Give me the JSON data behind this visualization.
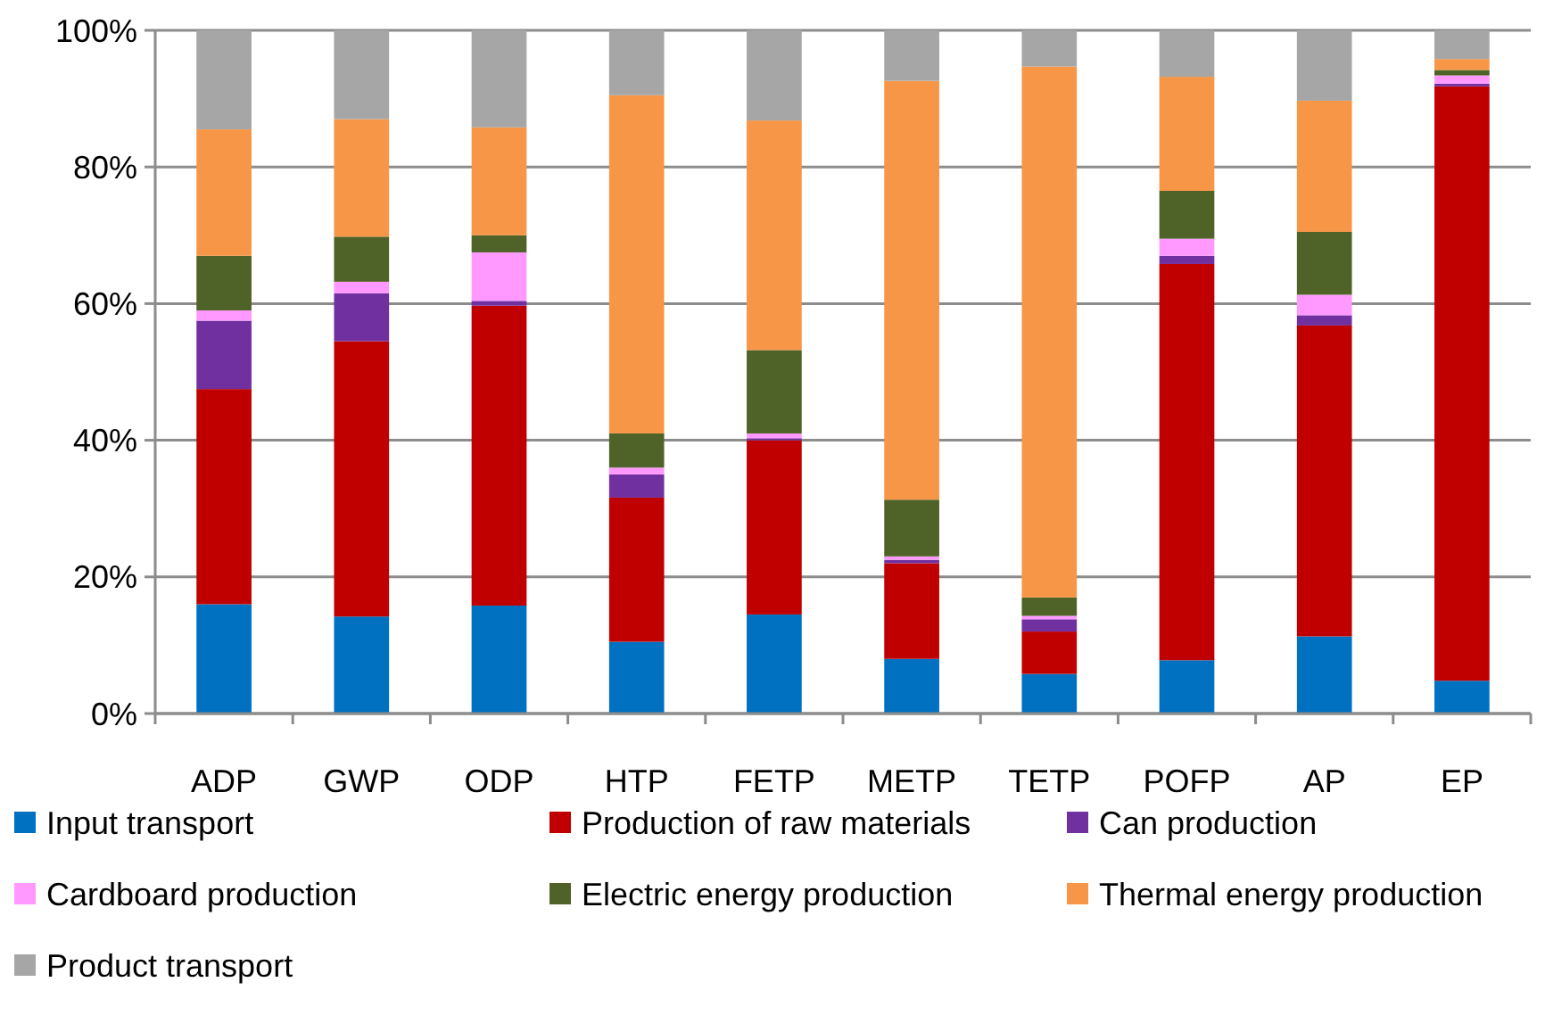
{
  "chart_data": {
    "type": "bar",
    "stacked": true,
    "categories": [
      "ADP",
      "GWP",
      "ODP",
      "HTP",
      "FETP",
      "METP",
      "TETP",
      "POFP",
      "AP",
      "EP"
    ],
    "series": [
      {
        "name": "Input transport",
        "color": "#0070c0",
        "values": [
          16,
          14.2,
          15.8,
          10.5,
          14.5,
          8,
          5.8,
          7.8,
          11.3,
          4.8
        ]
      },
      {
        "name": "Production of raw materials",
        "color": "#c00000",
        "values": [
          31.5,
          40.3,
          43.9,
          21.1,
          25.5,
          14,
          6.2,
          58,
          45.5,
          87
        ]
      },
      {
        "name": "Can production",
        "color": "#7030a0",
        "values": [
          10,
          7,
          0.7,
          3.4,
          0.3,
          0.5,
          1.8,
          1.2,
          1.5,
          0.4
        ]
      },
      {
        "name": "Cardboard production",
        "color": "#ff99ff",
        "values": [
          1.5,
          1.7,
          7.1,
          1,
          0.7,
          0.5,
          0.5,
          2.5,
          3,
          1.2
        ]
      },
      {
        "name": "Electric energy production",
        "color": "#4f6228",
        "values": [
          8,
          6.6,
          2.5,
          5,
          12.2,
          8.3,
          2.7,
          7,
          9.2,
          0.8
        ]
      },
      {
        "name": "Thermal energy production",
        "color": "#f79646",
        "values": [
          18.5,
          17.2,
          15.8,
          49.5,
          33.6,
          61.3,
          77.7,
          16.7,
          19.2,
          1.6
        ]
      },
      {
        "name": "Product transport",
        "color": "#a6a6a6",
        "values": [
          14.5,
          13,
          14.2,
          9.5,
          13.2,
          7.4,
          5.3,
          6.8,
          10.3,
          4.2
        ]
      }
    ],
    "ylim": [
      0,
      100
    ],
    "yticks": [
      {
        "value": 0,
        "label": "0%"
      },
      {
        "value": 20,
        "label": "20%"
      },
      {
        "value": 40,
        "label": "40%"
      },
      {
        "value": 60,
        "label": "60%"
      },
      {
        "value": 80,
        "label": "80%"
      },
      {
        "value": 100,
        "label": "100%"
      }
    ],
    "grid": "y",
    "legend": "bottom"
  }
}
